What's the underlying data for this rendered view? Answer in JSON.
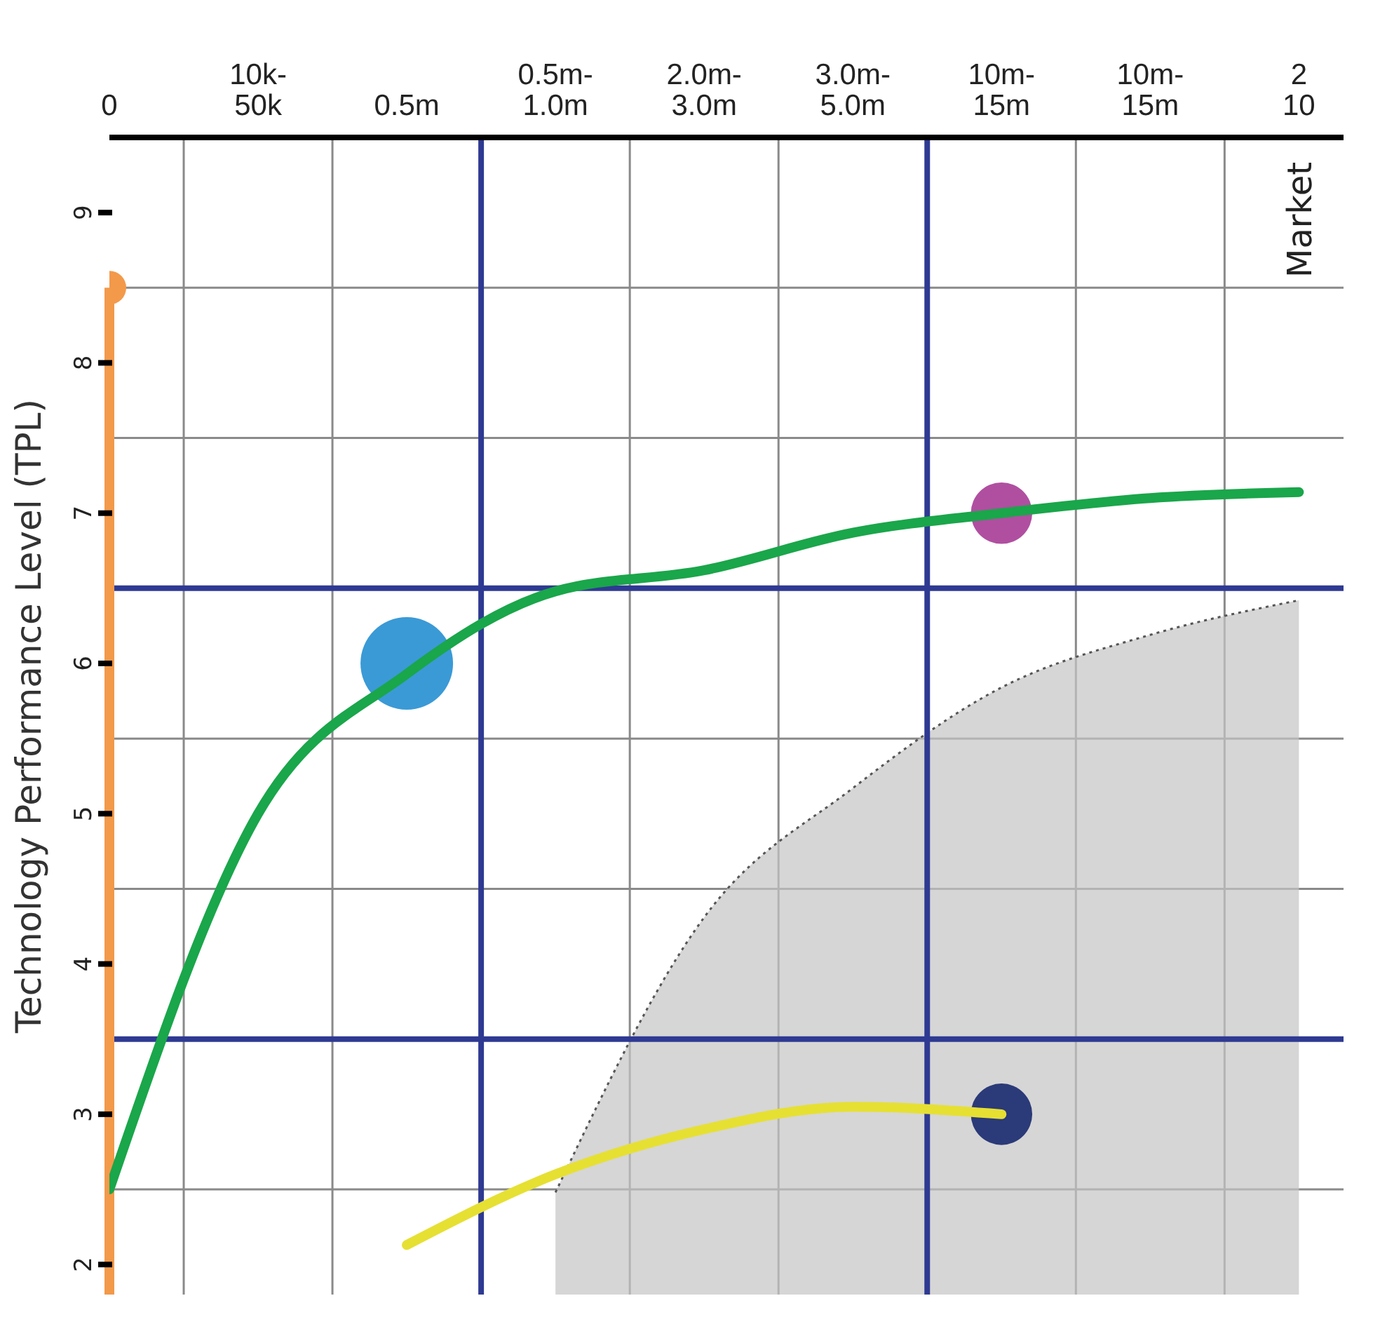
{
  "chart_data": {
    "type": "line",
    "ylabel": "Technology Performance Level (TPL)",
    "annotations": [
      "Market"
    ],
    "categories": [
      "0",
      "10k-50k",
      "0.5m",
      "0.5m-1.0m",
      "2.0m-3.0m",
      "3.0m-5.0m",
      "10m-15m",
      "10m-15m",
      "2 10"
    ],
    "ylim": [
      1.8,
      9.5
    ],
    "yticks": [
      2,
      3,
      4,
      5,
      6,
      7,
      8,
      9,
      {
        "value": 2.5,
        "label": null
      },
      {
        "value": 4.5,
        "label": null
      },
      {
        "value": 5.5,
        "label": null
      },
      {
        "value": 7.5,
        "label": null
      },
      {
        "value": 8.5,
        "label": null
      }
    ],
    "grid": true,
    "ref_lines": [
      {
        "axis": "y",
        "value": 6.5,
        "color": "#2e3a92"
      },
      {
        "axis": "y",
        "value": 3.5,
        "color": "#2e3a92"
      }
    ],
    "series": [
      {
        "type": "area",
        "color": "#c4c4c4",
        "line_style": "dotted",
        "values": [
          null,
          null,
          null,
          2.48,
          4.31,
          5.17,
          5.84,
          6.19,
          6.42
        ]
      },
      {
        "type": "scatter",
        "color": "#f3994a",
        "values": [
          8.5,
          null,
          null,
          null,
          null,
          null,
          null,
          null,
          null
        ]
      },
      {
        "color": "#1aa64a",
        "values": [
          2.5,
          5.0,
          5.93,
          6.48,
          6.62,
          6.87,
          7.0,
          7.1,
          7.14
        ]
      },
      {
        "type": "bubble",
        "color": "#3a9ad6",
        "values": [
          null,
          null,
          6.0,
          null,
          null,
          null,
          null,
          null,
          null
        ],
        "sizes": [
          null,
          null,
          1,
          null,
          null,
          null,
          null,
          null,
          null
        ]
      },
      {
        "type": "bubble",
        "color": "#b04fa0",
        "values": [
          null,
          null,
          null,
          null,
          null,
          null,
          7.0,
          null,
          null
        ],
        "sizes": [
          null,
          null,
          null,
          null,
          null,
          null,
          0.44,
          null,
          null
        ]
      },
      {
        "type": "bubble",
        "color": "#2b3a78",
        "values": [
          null,
          null,
          null,
          null,
          null,
          null,
          3.0,
          null,
          null
        ],
        "sizes": [
          null,
          null,
          null,
          null,
          null,
          null,
          0.44,
          null,
          null
        ]
      },
      {
        "color": "#e6e033",
        "values": [
          null,
          null,
          2.13,
          2.6,
          2.9,
          3.05,
          3.0,
          null,
          null
        ]
      }
    ]
  }
}
